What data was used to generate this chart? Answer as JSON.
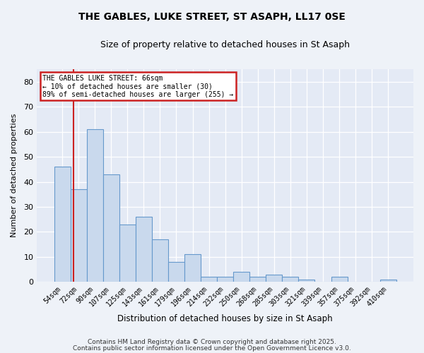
{
  "title": "THE GABLES, LUKE STREET, ST ASAPH, LL17 0SE",
  "subtitle": "Size of property relative to detached houses in St Asaph",
  "xlabel": "Distribution of detached houses by size in St Asaph",
  "ylabel": "Number of detached properties",
  "bin_labels": [
    "54sqm",
    "72sqm",
    "90sqm",
    "107sqm",
    "125sqm",
    "143sqm",
    "161sqm",
    "179sqm",
    "196sqm",
    "214sqm",
    "232sqm",
    "250sqm",
    "268sqm",
    "285sqm",
    "303sqm",
    "321sqm",
    "339sqm",
    "357sqm",
    "375sqm",
    "392sqm",
    "410sqm"
  ],
  "bar_values": [
    46,
    37,
    61,
    43,
    23,
    26,
    17,
    8,
    11,
    2,
    2,
    4,
    2,
    3,
    2,
    1,
    0,
    2,
    0,
    0,
    1
  ],
  "bar_color": "#c9d9ed",
  "bar_edgecolor": "#6699cc",
  "vline_color": "#cc2222",
  "annotation_title": "THE GABLES LUKE STREET: 66sqm",
  "annotation_line1": "← 10% of detached houses are smaller (30)",
  "annotation_line2": "89% of semi-detached houses are larger (255) →",
  "annotation_box_color": "#ffffff",
  "annotation_box_edgecolor": "#cc2222",
  "ylim": [
    0,
    85
  ],
  "yticks": [
    0,
    10,
    20,
    30,
    40,
    50,
    60,
    70,
    80
  ],
  "footer_line1": "Contains HM Land Registry data © Crown copyright and database right 2025.",
  "footer_line2": "Contains public sector information licensed under the Open Government Licence v3.0.",
  "background_color": "#eef2f8",
  "plot_background": "#e4eaf5"
}
